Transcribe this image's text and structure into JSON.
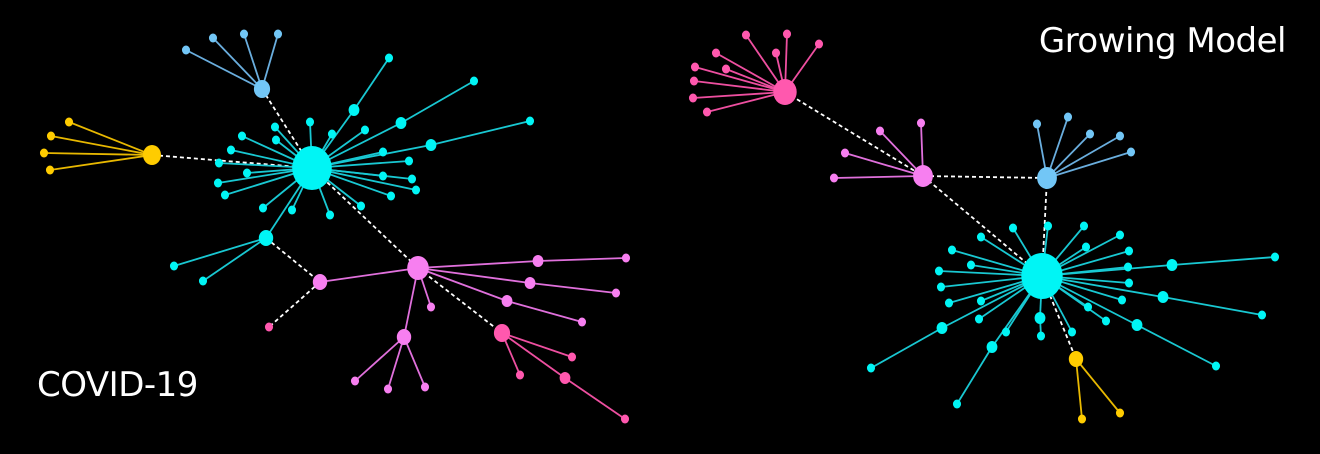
{
  "panels": {
    "left": {
      "title": "COVID-19"
    },
    "right": {
      "title": "Growing Model"
    }
  },
  "colors": {
    "background": "#000000",
    "cyan": "#00f5f5",
    "cyan_edge": "#19c8d2",
    "blue": "#72c6f6",
    "blue_edge": "#6aaede",
    "yellow": "#ffcc00",
    "yellow_edge": "#e8b800",
    "pink": "#f77ff0",
    "pink_edge": "#e070dc",
    "magenta": "#ff58ae",
    "magenta_edge": "#ee4fa0",
    "bridge_edge": "#ffffff"
  }
}
